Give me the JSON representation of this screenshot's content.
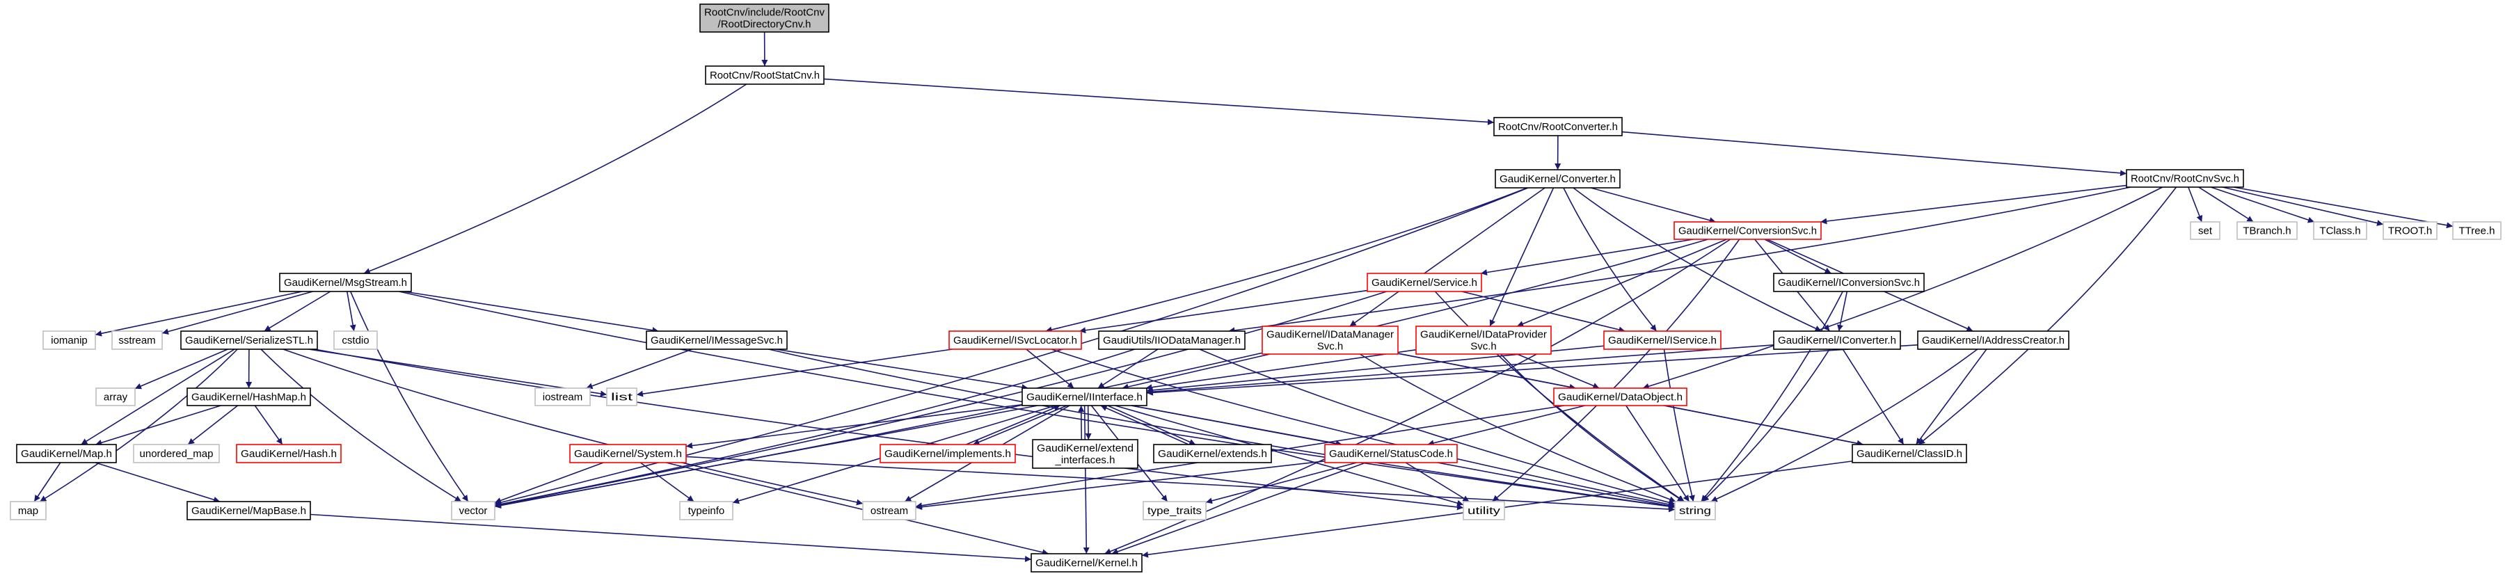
{
  "colors": {
    "edge": "#191970",
    "border_normal": "#000000",
    "border_red": "#ff0000",
    "border_system": "#bfbfbf",
    "fill_root": "#bfbfbf",
    "fill_default": "#ffffff"
  },
  "nodes": [
    {
      "id": "RootDirectoryCnv",
      "lines": [
        "RootCnv/include/RootCnv",
        "/RootDirectoryCnv.h"
      ],
      "kind": "root"
    },
    {
      "id": "RootStatCnv",
      "lines": [
        "RootCnv/RootStatCnv.h"
      ],
      "kind": "normal"
    },
    {
      "id": "RootConverter",
      "lines": [
        "RootCnv/RootConverter.h"
      ],
      "kind": "normal"
    },
    {
      "id": "Converter",
      "lines": [
        "GaudiKernel/Converter.h"
      ],
      "kind": "normal"
    },
    {
      "id": "RootCnvSvc",
      "lines": [
        "RootCnv/RootCnvSvc.h"
      ],
      "kind": "normal"
    },
    {
      "id": "ConversionSvc",
      "lines": [
        "GaudiKernel/ConversionSvc.h"
      ],
      "kind": "red"
    },
    {
      "id": "set",
      "lines": [
        "set"
      ],
      "kind": "system"
    },
    {
      "id": "TBranch",
      "lines": [
        "TBranch.h"
      ],
      "kind": "system"
    },
    {
      "id": "TClass",
      "lines": [
        "TClass.h"
      ],
      "kind": "system"
    },
    {
      "id": "TROOT",
      "lines": [
        "TROOT.h"
      ],
      "kind": "system"
    },
    {
      "id": "TTree",
      "lines": [
        "TTree.h"
      ],
      "kind": "system"
    },
    {
      "id": "MsgStream",
      "lines": [
        "GaudiKernel/MsgStream.h"
      ],
      "kind": "normal"
    },
    {
      "id": "Service",
      "lines": [
        "GaudiKernel/Service.h"
      ],
      "kind": "red"
    },
    {
      "id": "IConversionSvc",
      "lines": [
        "GaudiKernel/IConversionSvc.h"
      ],
      "kind": "normal"
    },
    {
      "id": "iomanip",
      "lines": [
        "iomanip"
      ],
      "kind": "system"
    },
    {
      "id": "sstream",
      "lines": [
        "sstream"
      ],
      "kind": "system"
    },
    {
      "id": "SerializeSTL",
      "lines": [
        "GaudiKernel/SerializeSTL.h"
      ],
      "kind": "normal"
    },
    {
      "id": "cstdio",
      "lines": [
        "cstdio"
      ],
      "kind": "system"
    },
    {
      "id": "IMessageSvc",
      "lines": [
        "GaudiKernel/IMessageSvc.h"
      ],
      "kind": "normal"
    },
    {
      "id": "ISvcLocator",
      "lines": [
        "GaudiKernel/ISvcLocator.h"
      ],
      "kind": "red"
    },
    {
      "id": "IIODataManager",
      "lines": [
        "GaudiUtils/IIODataManager.h"
      ],
      "kind": "normal"
    },
    {
      "id": "IDataManagerSvc",
      "lines": [
        "GaudiKernel/IDataManager",
        "Svc.h"
      ],
      "kind": "red"
    },
    {
      "id": "IDataProviderSvc",
      "lines": [
        "GaudiKernel/IDataProvider",
        "Svc.h"
      ],
      "kind": "red"
    },
    {
      "id": "IService",
      "lines": [
        "GaudiKernel/IService.h"
      ],
      "kind": "red"
    },
    {
      "id": "IConverter",
      "lines": [
        "GaudiKernel/IConverter.h"
      ],
      "kind": "normal"
    },
    {
      "id": "IAddressCreator",
      "lines": [
        "GaudiKernel/IAddressCreator.h"
      ],
      "kind": "normal"
    },
    {
      "id": "array",
      "lines": [
        "array"
      ],
      "kind": "system"
    },
    {
      "id": "HashMap",
      "lines": [
        "GaudiKernel/HashMap.h"
      ],
      "kind": "normal"
    },
    {
      "id": "iostream",
      "lines": [
        "iostream"
      ],
      "kind": "system"
    },
    {
      "id": "list",
      "lines": [
        "list"
      ],
      "kind": "system"
    },
    {
      "id": "IInterface",
      "lines": [
        "GaudiKernel/IInterface.h"
      ],
      "kind": "normal"
    },
    {
      "id": "DataObject",
      "lines": [
        "GaudiKernel/DataObject.h"
      ],
      "kind": "red"
    },
    {
      "id": "Map",
      "lines": [
        "GaudiKernel/Map.h"
      ],
      "kind": "normal"
    },
    {
      "id": "unordered_map",
      "lines": [
        "unordered_map"
      ],
      "kind": "system"
    },
    {
      "id": "Hash",
      "lines": [
        "GaudiKernel/Hash.h"
      ],
      "kind": "red"
    },
    {
      "id": "System",
      "lines": [
        "GaudiKernel/System.h"
      ],
      "kind": "red"
    },
    {
      "id": "implements",
      "lines": [
        "GaudiKernel/implements.h"
      ],
      "kind": "red"
    },
    {
      "id": "extend_interfaces",
      "lines": [
        "GaudiKernel/extend",
        "_interfaces.h"
      ],
      "kind": "normal"
    },
    {
      "id": "extends",
      "lines": [
        "GaudiKernel/extends.h"
      ],
      "kind": "normal"
    },
    {
      "id": "StatusCode",
      "lines": [
        "GaudiKernel/StatusCode.h"
      ],
      "kind": "red"
    },
    {
      "id": "ClassID",
      "lines": [
        "GaudiKernel/ClassID.h"
      ],
      "kind": "normal"
    },
    {
      "id": "map",
      "lines": [
        "map"
      ],
      "kind": "system"
    },
    {
      "id": "MapBase",
      "lines": [
        "GaudiKernel/MapBase.h"
      ],
      "kind": "normal"
    },
    {
      "id": "vector",
      "lines": [
        "vector"
      ],
      "kind": "system"
    },
    {
      "id": "typeinfo",
      "lines": [
        "typeinfo"
      ],
      "kind": "system"
    },
    {
      "id": "ostream",
      "lines": [
        "ostream"
      ],
      "kind": "system"
    },
    {
      "id": "type_traits",
      "lines": [
        "type_traits"
      ],
      "kind": "system"
    },
    {
      "id": "utility",
      "lines": [
        "utility"
      ],
      "kind": "system"
    },
    {
      "id": "string",
      "lines": [
        "string"
      ],
      "kind": "system"
    },
    {
      "id": "Kernel",
      "lines": [
        "GaudiKernel/Kernel.h"
      ],
      "kind": "normal"
    }
  ],
  "edges": [
    [
      "RootDirectoryCnv",
      "RootStatCnv"
    ],
    [
      "RootStatCnv",
      "MsgStream"
    ],
    [
      "RootStatCnv",
      "RootConverter"
    ],
    [
      "RootConverter",
      "Converter"
    ],
    [
      "RootConverter",
      "RootCnvSvc"
    ],
    [
      "Converter",
      "ConversionSvc"
    ],
    [
      "Converter",
      "ISvcLocator"
    ],
    [
      "Converter",
      "IDataManagerSvc"
    ],
    [
      "Converter",
      "IDataProviderSvc"
    ],
    [
      "Converter",
      "IService"
    ],
    [
      "Converter",
      "IConverter"
    ],
    [
      "Converter",
      "vector"
    ],
    [
      "RootCnvSvc",
      "ConversionSvc"
    ],
    [
      "RootCnvSvc",
      "IIODataManager"
    ],
    [
      "RootCnvSvc",
      "DataObject"
    ],
    [
      "RootCnvSvc",
      "ClassID"
    ],
    [
      "RootCnvSvc",
      "set"
    ],
    [
      "RootCnvSvc",
      "TBranch"
    ],
    [
      "RootCnvSvc",
      "TClass"
    ],
    [
      "RootCnvSvc",
      "TROOT"
    ],
    [
      "RootCnvSvc",
      "TTree"
    ],
    [
      "ConversionSvc",
      "Service"
    ],
    [
      "ConversionSvc",
      "IConversionSvc"
    ],
    [
      "ConversionSvc",
      "IConverter"
    ],
    [
      "ConversionSvc",
      "IAddressCreator"
    ],
    [
      "ConversionSvc",
      "IDataProviderSvc"
    ],
    [
      "ConversionSvc",
      "vector"
    ],
    [
      "ConversionSvc",
      "utility"
    ],
    [
      "ConversionSvc",
      "Kernel"
    ],
    [
      "Service",
      "ISvcLocator"
    ],
    [
      "Service",
      "IService"
    ],
    [
      "Service",
      "string"
    ],
    [
      "Service",
      "vector"
    ],
    [
      "MsgStream",
      "iomanip"
    ],
    [
      "MsgStream",
      "sstream"
    ],
    [
      "MsgStream",
      "SerializeSTL"
    ],
    [
      "MsgStream",
      "cstdio"
    ],
    [
      "MsgStream",
      "vector"
    ],
    [
      "MsgStream",
      "IMessageSvc"
    ],
    [
      "MsgStream",
      "string"
    ],
    [
      "SerializeSTL",
      "array"
    ],
    [
      "SerializeSTL",
      "HashMap"
    ],
    [
      "SerializeSTL",
      "Map"
    ],
    [
      "SerializeSTL",
      "map"
    ],
    [
      "SerializeSTL",
      "vector"
    ],
    [
      "SerializeSTL",
      "list"
    ],
    [
      "SerializeSTL",
      "ostream"
    ],
    [
      "SerializeSTL",
      "utility"
    ],
    [
      "HashMap",
      "Map"
    ],
    [
      "HashMap",
      "unordered_map"
    ],
    [
      "HashMap",
      "Hash"
    ],
    [
      "Map",
      "map"
    ],
    [
      "Map",
      "MapBase"
    ],
    [
      "MapBase",
      "Kernel"
    ],
    [
      "IMessageSvc",
      "iostream"
    ],
    [
      "IMessageSvc",
      "IInterface"
    ],
    [
      "IMessageSvc",
      "string"
    ],
    [
      "ISvcLocator",
      "IInterface"
    ],
    [
      "ISvcLocator",
      "list"
    ],
    [
      "ISvcLocator",
      "string"
    ],
    [
      "IIODataManager",
      "IInterface"
    ],
    [
      "IIODataManager",
      "vector"
    ],
    [
      "IIODataManager",
      "string"
    ],
    [
      "IDataManagerSvc",
      "IInterface"
    ],
    [
      "IDataManagerSvc",
      "DataObject"
    ],
    [
      "IDataManagerSvc",
      "string"
    ],
    [
      "IDataManagerSvc",
      "ClassID"
    ],
    [
      "IDataProviderSvc",
      "IInterface"
    ],
    [
      "IDataProviderSvc",
      "DataObject"
    ],
    [
      "IDataProviderSvc",
      "string"
    ],
    [
      "IService",
      "IInterface"
    ],
    [
      "IService",
      "string"
    ],
    [
      "IConversionSvc",
      "IConverter"
    ],
    [
      "IConversionSvc",
      "string"
    ],
    [
      "IConverter",
      "IInterface"
    ],
    [
      "IConverter",
      "ClassID"
    ],
    [
      "IConverter",
      "string"
    ],
    [
      "IAddressCreator",
      "IInterface"
    ],
    [
      "IAddressCreator",
      "ClassID"
    ],
    [
      "IAddressCreator",
      "string"
    ],
    [
      "IInterface",
      "System"
    ],
    [
      "IInterface",
      "implements"
    ],
    [
      "IInterface",
      "extend_interfaces"
    ],
    [
      "IInterface",
      "extends"
    ],
    [
      "IInterface",
      "StatusCode"
    ],
    [
      "IInterface",
      "ostream"
    ],
    [
      "IInterface",
      "type_traits"
    ],
    [
      "IInterface",
      "typeinfo"
    ],
    [
      "IInterface",
      "utility"
    ],
    [
      "IInterface",
      "vector"
    ],
    [
      "IInterface",
      "Kernel"
    ],
    [
      "IInterface",
      "string"
    ],
    [
      "implements",
      "IInterface"
    ],
    [
      "extend_interfaces",
      "IInterface"
    ],
    [
      "extends",
      "IInterface"
    ],
    [
      "DataObject",
      "StatusCode"
    ],
    [
      "DataObject",
      "ClassID"
    ],
    [
      "DataObject",
      "string"
    ],
    [
      "DataObject",
      "ostream"
    ],
    [
      "StatusCode",
      "ostream"
    ],
    [
      "StatusCode",
      "type_traits"
    ],
    [
      "StatusCode",
      "utility"
    ],
    [
      "StatusCode",
      "Kernel"
    ],
    [
      "System",
      "vector"
    ],
    [
      "System",
      "typeinfo"
    ],
    [
      "System",
      "string"
    ],
    [
      "System",
      "Kernel"
    ],
    [
      "ClassID",
      "Kernel"
    ]
  ]
}
